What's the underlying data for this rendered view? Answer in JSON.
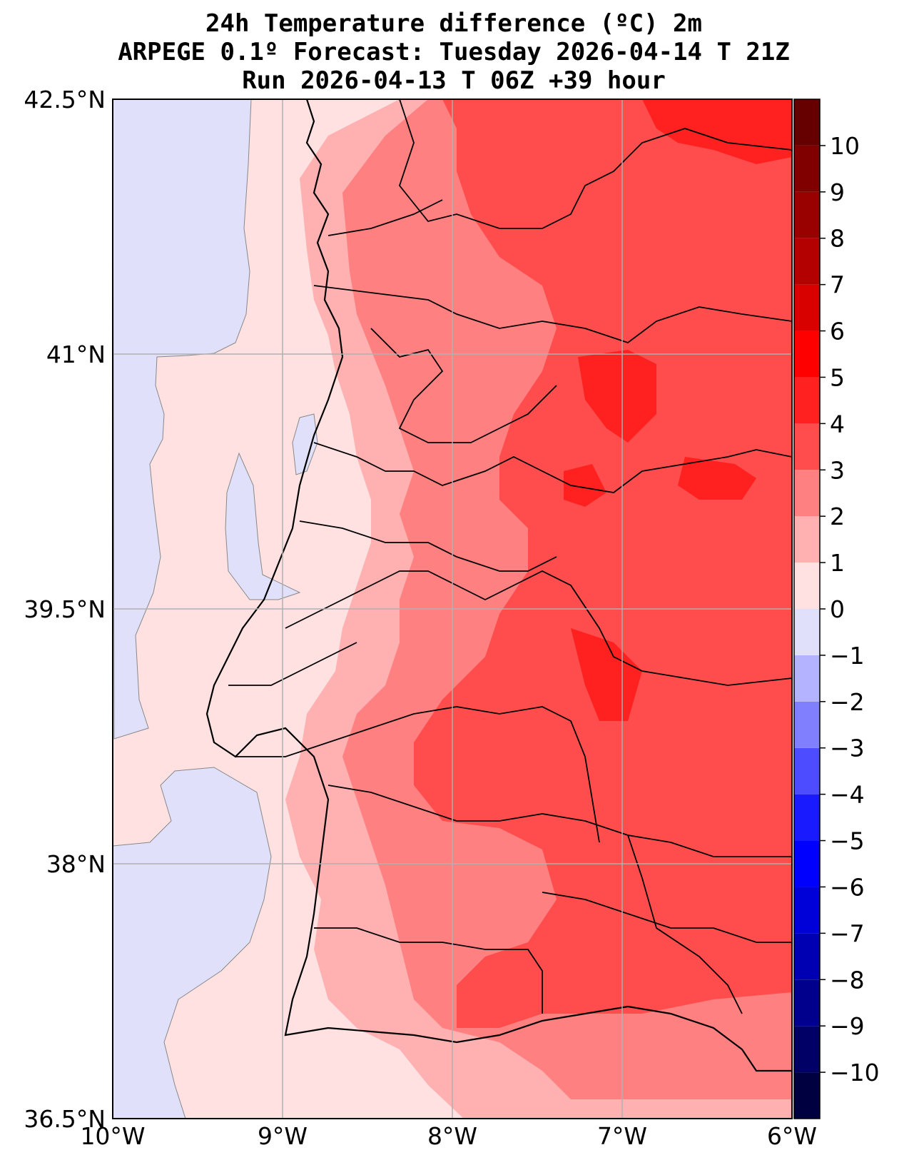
{
  "title": {
    "line1": "24h Temperature difference (ºC) 2m",
    "line2": "ARPEGE 0.1º Forecast: Tuesday 2026-04-14 T 21Z",
    "line3": "Run 2026-04-13 T 06Z +39 hour"
  },
  "map": {
    "lon_range": [
      -10,
      -6
    ],
    "lat_range": [
      36.5,
      42.5
    ],
    "lon_ticks": [
      {
        "value": -10,
        "label": "10°W"
      },
      {
        "value": -9,
        "label": "9°W"
      },
      {
        "value": -8,
        "label": "8°W"
      },
      {
        "value": -7,
        "label": "7°W"
      },
      {
        "value": -6,
        "label": "6°W"
      }
    ],
    "lat_ticks": [
      {
        "value": 42.5,
        "label": "42.5°N"
      },
      {
        "value": 41,
        "label": "41°N"
      },
      {
        "value": 39.5,
        "label": "39.5°N"
      },
      {
        "value": 38,
        "label": "38°N"
      },
      {
        "value": 36.5,
        "label": "36.5°N"
      }
    ],
    "grid": true
  },
  "colorbar": {
    "min": -11,
    "max": 11,
    "levels": [
      {
        "from": -11,
        "to": -10,
        "color": "#000040"
      },
      {
        "from": -10,
        "to": -9,
        "color": "#000066"
      },
      {
        "from": -9,
        "to": -8,
        "color": "#00008c"
      },
      {
        "from": -8,
        "to": -7,
        "color": "#0000b3"
      },
      {
        "from": -7,
        "to": -6,
        "color": "#0000d9"
      },
      {
        "from": -6,
        "to": -5,
        "color": "#0000ff"
      },
      {
        "from": -5,
        "to": -4,
        "color": "#1a1aff"
      },
      {
        "from": -4,
        "to": -3,
        "color": "#4d4dff"
      },
      {
        "from": -3,
        "to": -2,
        "color": "#8080ff"
      },
      {
        "from": -2,
        "to": -1,
        "color": "#b3b3ff"
      },
      {
        "from": -1,
        "to": 0,
        "color": "#e0e0fa"
      },
      {
        "from": 0,
        "to": 1,
        "color": "#ffe1e1"
      },
      {
        "from": 1,
        "to": 2,
        "color": "#ffb0b0"
      },
      {
        "from": 2,
        "to": 3,
        "color": "#ff8080"
      },
      {
        "from": 3,
        "to": 4,
        "color": "#ff4d4d"
      },
      {
        "from": 4,
        "to": 5,
        "color": "#ff2020"
      },
      {
        "from": 5,
        "to": 6,
        "color": "#ff0000"
      },
      {
        "from": 6,
        "to": 7,
        "color": "#d90000"
      },
      {
        "from": 7,
        "to": 8,
        "color": "#b30000"
      },
      {
        "from": 8,
        "to": 9,
        "color": "#990000"
      },
      {
        "from": 9,
        "to": 10,
        "color": "#800000"
      },
      {
        "from": 10,
        "to": 11,
        "color": "#660000"
      }
    ],
    "tick_labels": [
      {
        "value": 10,
        "label": "10"
      },
      {
        "value": 9,
        "label": "9"
      },
      {
        "value": 8,
        "label": "8"
      },
      {
        "value": 7,
        "label": "7"
      },
      {
        "value": 6,
        "label": "6"
      },
      {
        "value": 5,
        "label": "5"
      },
      {
        "value": 4,
        "label": "4"
      },
      {
        "value": 3,
        "label": "3"
      },
      {
        "value": 2,
        "label": "2"
      },
      {
        "value": 1,
        "label": "1"
      },
      {
        "value": 0,
        "label": "0"
      },
      {
        "value": -1,
        "label": "−1"
      },
      {
        "value": -2,
        "label": "−2"
      },
      {
        "value": -3,
        "label": "−3"
      },
      {
        "value": -4,
        "label": "−4"
      },
      {
        "value": -5,
        "label": "−5"
      },
      {
        "value": -6,
        "label": "−6"
      },
      {
        "value": -7,
        "label": "−7"
      },
      {
        "value": -8,
        "label": "−8"
      },
      {
        "value": -9,
        "label": "−9"
      },
      {
        "value": -10,
        "label": "−10"
      }
    ]
  },
  "colors": {
    "ocean_negative": "#e0e0fa",
    "diff_0_1": "#ffe1e1",
    "diff_1_2": "#ffb0b0",
    "diff_2_3": "#ff8080",
    "diff_3_4": "#ff4d4d",
    "diff_4_5": "#ff2020",
    "coastline": "#000000",
    "gridline": "#b0b0b0"
  }
}
